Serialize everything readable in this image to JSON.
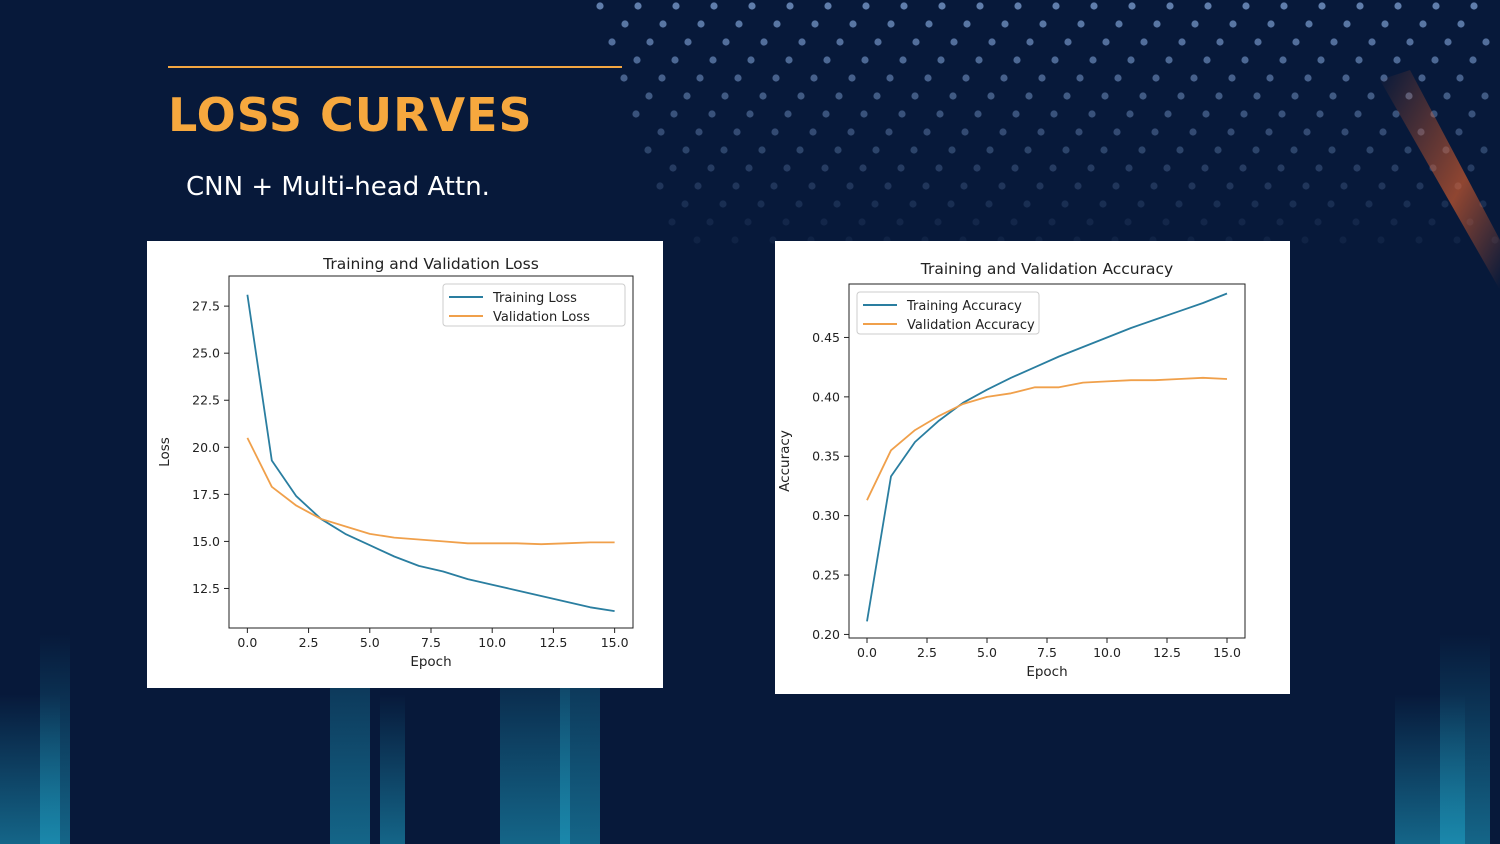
{
  "slide": {
    "title": "LOSS CURVES",
    "subtitle": "CNN + Multi-head Attn.",
    "accent_color": "#f4a641",
    "background_color": "#07193a"
  },
  "chart_data": [
    {
      "type": "line",
      "title": "Training and Validation Loss",
      "xlabel": "Epoch",
      "ylabel": "Loss",
      "xlim": [
        -0.75,
        15.75
      ],
      "ylim": [
        10.4,
        29.1
      ],
      "xticks": [
        0,
        2.5,
        5,
        7.5,
        10,
        12.5,
        15
      ],
      "xtick_labels": [
        "0.0",
        "2.5",
        "5.0",
        "7.5",
        "10.0",
        "12.5",
        "15.0"
      ],
      "yticks": [
        12.5,
        15,
        17.5,
        20,
        22.5,
        25,
        27.5
      ],
      "ytick_labels": [
        "12.5",
        "15.0",
        "17.5",
        "20.0",
        "22.5",
        "25.0",
        "27.5"
      ],
      "grid": false,
      "legend": "upper right",
      "x": [
        0,
        1,
        2,
        3,
        4,
        5,
        6,
        7,
        8,
        9,
        10,
        11,
        12,
        13,
        14,
        15
      ],
      "series": [
        {
          "name": "Training Loss",
          "color": "#2a7ea0",
          "values": [
            28.1,
            19.3,
            17.4,
            16.2,
            15.4,
            14.8,
            14.2,
            13.7,
            13.4,
            13.0,
            12.7,
            12.4,
            12.1,
            11.8,
            11.5,
            11.3
          ]
        },
        {
          "name": "Validation Loss",
          "color": "#f0a04b",
          "values": [
            20.5,
            17.9,
            16.9,
            16.2,
            15.8,
            15.4,
            15.2,
            15.1,
            15.0,
            14.9,
            14.9,
            14.9,
            14.85,
            14.9,
            14.95,
            14.95
          ]
        }
      ]
    },
    {
      "type": "line",
      "title": "Training and Validation Accuracy",
      "xlabel": "Epoch",
      "ylabel": "Accuracy",
      "xlim": [
        -0.75,
        15.75
      ],
      "ylim": [
        0.197,
        0.495
      ],
      "xticks": [
        0,
        2.5,
        5,
        7.5,
        10,
        12.5,
        15
      ],
      "xtick_labels": [
        "0.0",
        "2.5",
        "5.0",
        "7.5",
        "10.0",
        "12.5",
        "15.0"
      ],
      "yticks": [
        0.2,
        0.25,
        0.3,
        0.35,
        0.4,
        0.45
      ],
      "ytick_labels": [
        "0.20",
        "0.25",
        "0.30",
        "0.35",
        "0.40",
        "0.45"
      ],
      "grid": false,
      "legend": "upper left",
      "x": [
        0,
        1,
        2,
        3,
        4,
        5,
        6,
        7,
        8,
        9,
        10,
        11,
        12,
        13,
        14,
        15
      ],
      "series": [
        {
          "name": "Training Accuracy",
          "color": "#2a7ea0",
          "values": [
            0.211,
            0.333,
            0.362,
            0.38,
            0.395,
            0.406,
            0.416,
            0.425,
            0.434,
            0.442,
            0.45,
            0.458,
            0.465,
            0.472,
            0.479,
            0.487
          ]
        },
        {
          "name": "Validation Accuracy",
          "color": "#f0a04b",
          "values": [
            0.313,
            0.355,
            0.372,
            0.384,
            0.394,
            0.4,
            0.403,
            0.408,
            0.408,
            0.412,
            0.413,
            0.414,
            0.414,
            0.415,
            0.416,
            0.415
          ]
        }
      ]
    }
  ]
}
